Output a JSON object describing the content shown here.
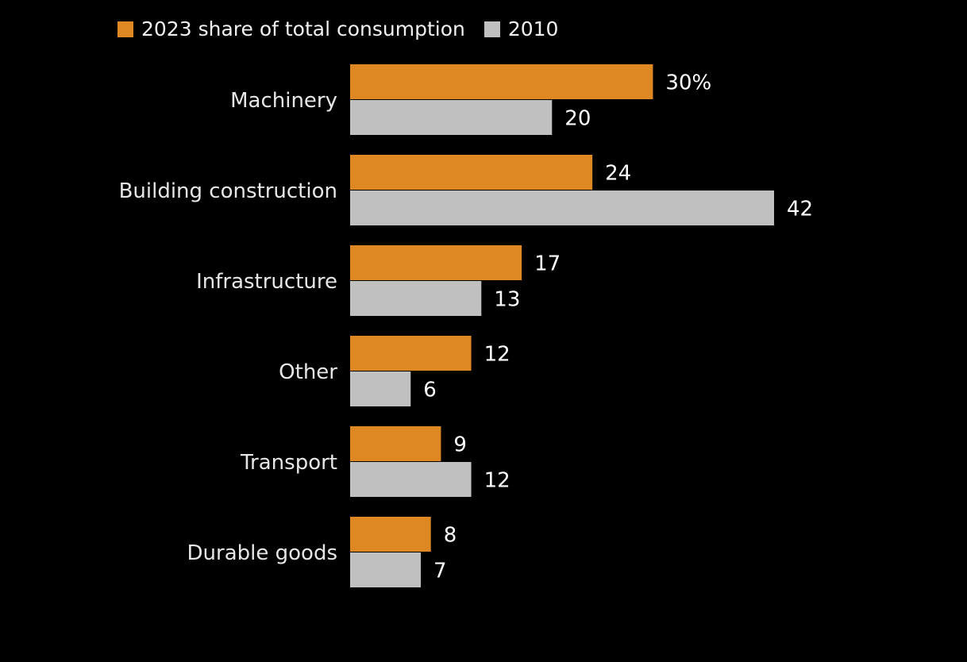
{
  "chart_data": {
    "type": "bar",
    "orientation": "horizontal",
    "categories": [
      "Machinery",
      "Building construction",
      "Infrastructure",
      "Other",
      "Transport",
      "Durable goods"
    ],
    "series": [
      {
        "name": "2023 share of total consumption",
        "values": [
          30,
          24,
          17,
          12,
          9,
          8
        ],
        "color": "#dd8822",
        "labels": [
          "30%",
          "24",
          "17",
          "12",
          "9",
          "8"
        ]
      },
      {
        "name": "2010",
        "values": [
          20,
          42,
          13,
          6,
          12,
          7
        ],
        "color": "#c0c0c0",
        "labels": [
          "20",
          "42",
          "13",
          "6",
          "12",
          "7"
        ]
      }
    ],
    "title": "",
    "xlabel": "",
    "ylabel": "",
    "xlim": [
      0,
      42
    ],
    "legend_position": "top-left",
    "grid": false,
    "background": "#000000"
  }
}
